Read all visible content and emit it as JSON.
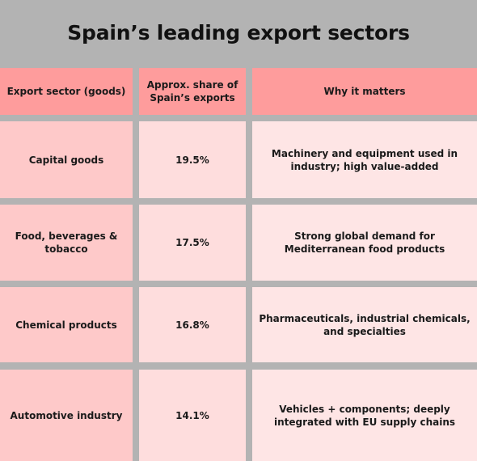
{
  "title": "Spain’s leading export sectors",
  "table": {
    "headers": [
      "Export sector (goods)",
      "Approx. share of Spain’s exports",
      "Why it matters"
    ],
    "rows": [
      {
        "sector": "Capital goods",
        "share": "19.5%",
        "why": "Machinery and equipment used in industry; high value-added"
      },
      {
        "sector": "Food, beverages & tobacco",
        "share": "17.5%",
        "why": "Strong global demand for Mediterranean food products"
      },
      {
        "sector": "Chemical products",
        "share": "16.8%",
        "why": "Pharmaceuticals, industrial chemicals, and specialties"
      },
      {
        "sector": "Automotive industry",
        "share": "14.1%",
        "why": "Vehicles + components; deeply integrated with EU supply chains"
      }
    ]
  },
  "colors": {
    "background": "#b3b3b3",
    "header": "#fe9c9c",
    "column1": "#fec9c9",
    "column2": "#fedddd",
    "column3": "#fee5e5"
  }
}
